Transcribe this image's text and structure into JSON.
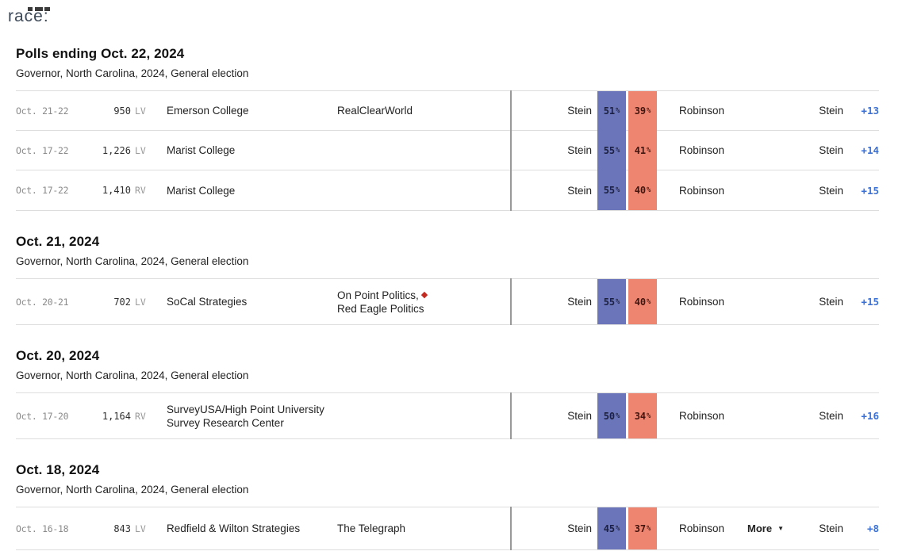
{
  "page": {
    "race_label": "race:"
  },
  "labels": {
    "percent": "%",
    "caret_down": "▼",
    "diamond": "◆"
  },
  "colors": {
    "dem_band": "#6B75B9",
    "rep_band": "#EE8571",
    "margin_blue": "#3B70D4",
    "diamond_red": "#C42B20"
  },
  "sections": [
    {
      "heading": "Polls ending Oct. 22, 2024",
      "subheading": "Governor, North Carolina, 2024, General election",
      "rows": [
        {
          "dates": "Oct. 21-22",
          "sample": "950",
          "population": "LV",
          "pollster": "Emerson College",
          "sponsor": {
            "before": "RealClearWorld",
            "diamond": false,
            "after": ""
          },
          "dem_name": "Stein",
          "dem_pct": "51",
          "rep_pct": "39",
          "rep_name": "Robinson",
          "leader": "Stein",
          "margin": "+13"
        },
        {
          "dates": "Oct. 17-22",
          "sample": "1,226",
          "population": "LV",
          "pollster": "Marist College",
          "sponsor": {
            "before": "",
            "diamond": false,
            "after": ""
          },
          "dem_name": "Stein",
          "dem_pct": "55",
          "rep_pct": "41",
          "rep_name": "Robinson",
          "leader": "Stein",
          "margin": "+14"
        },
        {
          "dates": "Oct. 17-22",
          "sample": "1,410",
          "population": "RV",
          "pollster": "Marist College",
          "sponsor": {
            "before": "",
            "diamond": false,
            "after": ""
          },
          "dem_name": "Stein",
          "dem_pct": "55",
          "rep_pct": "40",
          "rep_name": "Robinson",
          "leader": "Stein",
          "margin": "+15"
        }
      ]
    },
    {
      "heading": "Oct. 21, 2024",
      "subheading": "Governor, North Carolina, 2024, General election",
      "rows": [
        {
          "dates": "Oct. 20-21",
          "sample": "702",
          "population": "LV",
          "pollster": "SoCal Strategies",
          "sponsor": {
            "before": "On Point Politics,",
            "diamond": true,
            "after": "Red Eagle Politics"
          },
          "dem_name": "Stein",
          "dem_pct": "55",
          "rep_pct": "40",
          "rep_name": "Robinson",
          "leader": "Stein",
          "margin": "+15"
        }
      ]
    },
    {
      "heading": "Oct. 20, 2024",
      "subheading": "Governor, North Carolina, 2024, General election",
      "rows": [
        {
          "dates": "Oct. 17-20",
          "sample": "1,164",
          "population": "RV",
          "pollster": "SurveyUSA/High Point University Survey Research Center",
          "sponsor": {
            "before": "",
            "diamond": false,
            "after": ""
          },
          "dem_name": "Stein",
          "dem_pct": "50",
          "rep_pct": "34",
          "rep_name": "Robinson",
          "leader": "Stein",
          "margin": "+16"
        }
      ]
    },
    {
      "heading": "Oct. 18, 2024",
      "subheading": "Governor, North Carolina, 2024, General election",
      "rows": [
        {
          "dates": "Oct. 16-18",
          "sample": "843",
          "population": "LV",
          "pollster": "Redfield & Wilton Strategies",
          "sponsor": {
            "before": "The Telegraph",
            "diamond": false,
            "after": ""
          },
          "dem_name": "Stein",
          "dem_pct": "45",
          "rep_pct": "37",
          "rep_name": "Robinson",
          "leader": "Stein",
          "margin": "+8",
          "more": "More"
        }
      ]
    }
  ]
}
